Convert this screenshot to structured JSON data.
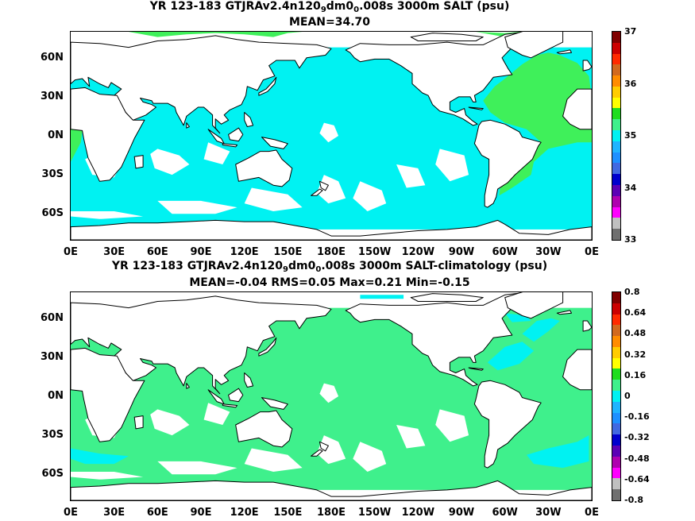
{
  "panels": [
    {
      "title_parts": [
        "YR 123-183 GTJRAv2.4n120",
        "9",
        "dm0",
        "0",
        ".008s 3000m SALT (psu)"
      ],
      "subtitle": "MEAN=34.70",
      "colorbar_labels": [
        "37",
        "36",
        "35",
        "34",
        "33"
      ],
      "ocean_fill": "#00f2f2",
      "patch_fill": "#3ff05a"
    },
    {
      "title_parts": [
        "YR 123-183 GTJRAv2.4n120",
        "9",
        "dm0",
        "0",
        ".008s 3000m SALT-climatology (psu)"
      ],
      "subtitle": "MEAN=-0.04   RMS=0.05   Max=0.21   Min=-0.15",
      "colorbar_labels": [
        "0.8",
        "0.64",
        "0.48",
        "0.32",
        "0.16",
        "0",
        "-0.16",
        "-0.32",
        "-0.48",
        "-0.64",
        "-0.8"
      ],
      "ocean_fill": "#3ff08c",
      "patch_fill": "#00f2f2"
    }
  ],
  "lat_labels": [
    "60N",
    "30N",
    "0N",
    "30S",
    "60S"
  ],
  "lon_labels": [
    "0E",
    "30E",
    "60E",
    "90E",
    "120E",
    "150E",
    "180E",
    "150W",
    "120W",
    "90W",
    "60W",
    "30W",
    "0E"
  ],
  "colorbar_colors": [
    "#800000",
    "#cc0000",
    "#ff2a00",
    "#d2691e",
    "#ff8c00",
    "#ffcc00",
    "#ffff00",
    "#1fdd1f",
    "#3ff08c",
    "#00f2f2",
    "#1fb4ff",
    "#1e90ff",
    "#4169e1",
    "#0000cd",
    "#5b00b5",
    "#b000b0",
    "#ff00ff",
    "#c0c0c0",
    "#707070"
  ]
}
